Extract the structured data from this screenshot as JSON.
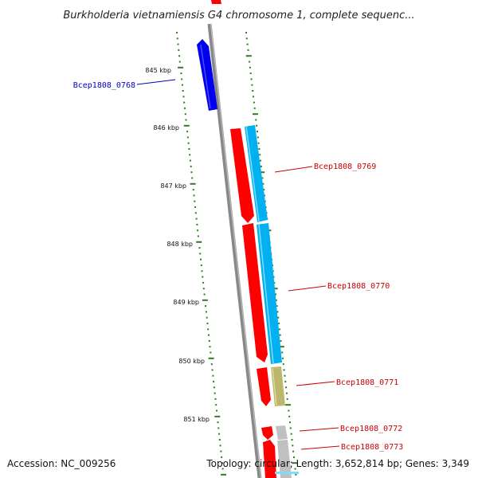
{
  "title": "Burkholderia vietnamiensis G4 chromosome 1, complete sequenc...",
  "accession": "Accession: NC_009256",
  "topology": "Topology: circular; Length: 3,652,814 bp; Genes: 3,349",
  "colors": {
    "backbone": "#888888",
    "ticks": "#2e7d1e",
    "cds_forward": "#ff0000",
    "cds_reverse_blue": "#0000ee",
    "label_red": "#cc0000",
    "label_blue": "#0000cc"
  },
  "scale_labels": [
    "845 kbp",
    "846 kbp",
    "847 kbp",
    "848 kbp",
    "849 kbp",
    "850 kbp",
    "851 kbp"
  ],
  "genes": [
    {
      "label": "Bcep1808_0768",
      "color": "#0000ee",
      "label_color": "#0000cc"
    },
    {
      "label": "Bcep1808_0769",
      "color": "#ff0000",
      "label_color": "#cc0000"
    },
    {
      "label": "Bcep1808_0770",
      "color": "#ff0000",
      "label_color": "#cc0000"
    },
    {
      "label": "Bcep1808_0771",
      "color": "#ff0000",
      "label_color": "#cc0000"
    },
    {
      "label": "Bcep1808_0772",
      "color": "#ff0000",
      "label_color": "#cc0000"
    },
    {
      "label": "Bcep1808_0773",
      "color": "#ff0000",
      "label_color": "#cc0000"
    }
  ]
}
